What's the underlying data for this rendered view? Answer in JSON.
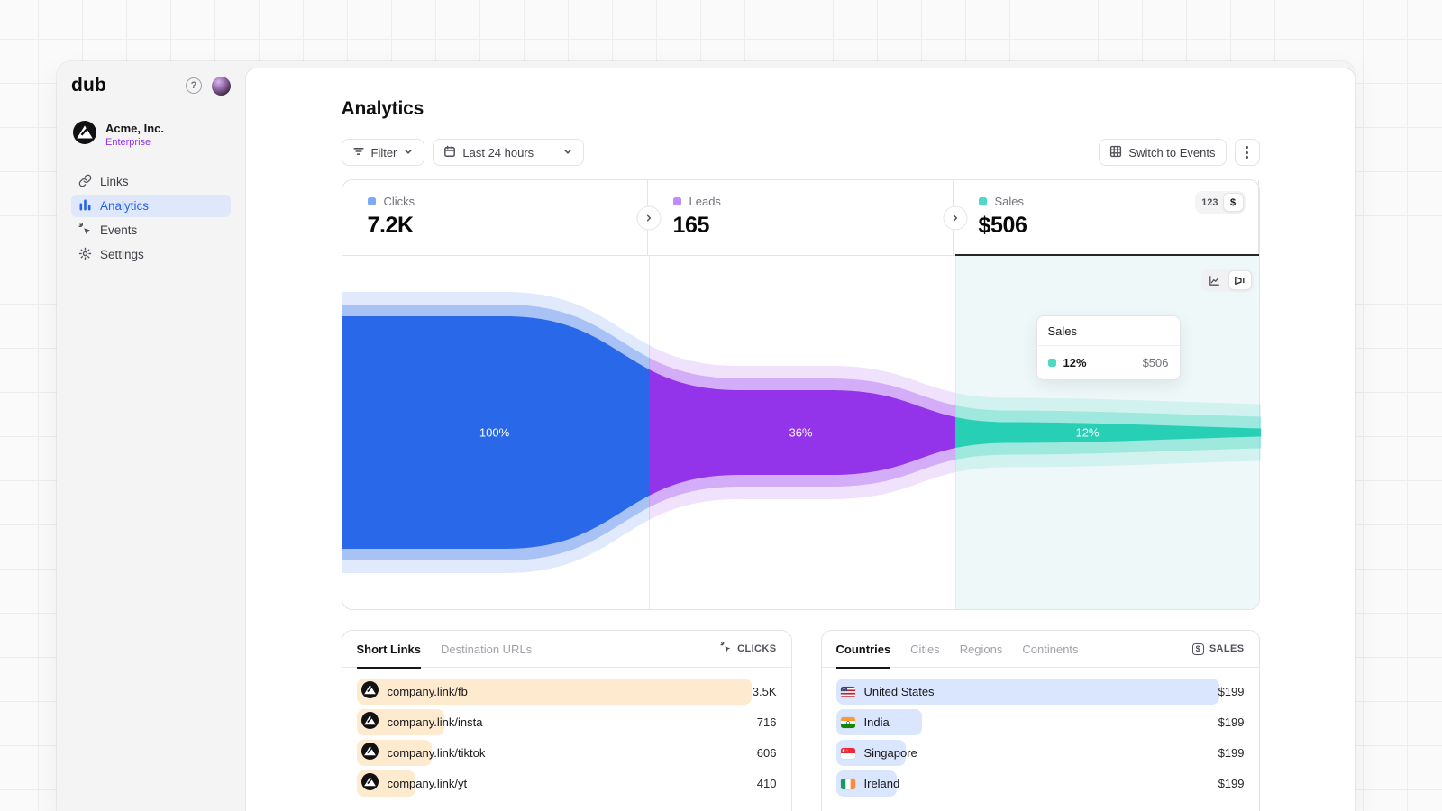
{
  "window": {
    "brand": "dub"
  },
  "sidebar": {
    "workspace": {
      "name": "Acme, Inc.",
      "plan": "Enterprise"
    },
    "nav": [
      {
        "label": "Links",
        "icon": "link-icon",
        "active": false
      },
      {
        "label": "Analytics",
        "icon": "bar-chart-icon",
        "active": true
      },
      {
        "label": "Events",
        "icon": "cursor-click-icon",
        "active": false
      },
      {
        "label": "Settings",
        "icon": "gear-icon",
        "active": false
      }
    ]
  },
  "header": {
    "title": "Analytics",
    "filter_label": "Filter",
    "date_range": "Last 24 hours",
    "switch_events_label": "Switch to Events"
  },
  "funnel": {
    "metrics": [
      {
        "label": "Clicks",
        "value": "7.2K",
        "percent": "100%",
        "color": "#7da9f8"
      },
      {
        "label": "Leads",
        "value": "165",
        "percent": "36%",
        "color": "#c18cf9"
      },
      {
        "label": "Sales",
        "value": "$506",
        "percent": "12%",
        "color": "#4fd8c4"
      }
    ],
    "unit_toggle": {
      "number": "123",
      "currency": "$"
    },
    "tooltip": {
      "title": "Sales",
      "percent": "12%",
      "value": "$506",
      "color": "#4fd8c4"
    }
  },
  "chart_data": {
    "type": "funnel",
    "stages": [
      {
        "label": "Clicks",
        "display_value": "7.2K",
        "percent": 100
      },
      {
        "label": "Leads",
        "display_value": "165",
        "percent": 36
      },
      {
        "label": "Sales",
        "display_value": "$506",
        "percent": 12
      }
    ],
    "legend_position": "header",
    "hovered_stage": "Sales"
  },
  "links_card": {
    "tabs": [
      "Short Links",
      "Destination URLs"
    ],
    "active_tab": "Short Links",
    "metric_label": "CLICKS",
    "metric_icon": "cursor-click-icon",
    "rows": [
      {
        "label": "company.link/fb",
        "value": "3.5K",
        "bar": 94
      },
      {
        "label": "company.link/insta",
        "value": "716",
        "bar": 21
      },
      {
        "label": "company.link/tiktok",
        "value": "606",
        "bar": 18
      },
      {
        "label": "company.link/yt",
        "value": "410",
        "bar": 14
      }
    ]
  },
  "geo_card": {
    "tabs": [
      "Countries",
      "Cities",
      "Regions",
      "Continents"
    ],
    "active_tab": "Countries",
    "metric_label": "SALES",
    "metric_icon": "invoice-dollar-icon",
    "rows": [
      {
        "label": "United States",
        "value": "$199",
        "flag": "us",
        "bar": 94
      },
      {
        "label": "India",
        "value": "$199",
        "flag": "in",
        "bar": 21
      },
      {
        "label": "Singapore",
        "value": "$199",
        "flag": "sg",
        "bar": 17
      },
      {
        "label": "Ireland",
        "value": "$199",
        "flag": "ie",
        "bar": 15
      }
    ]
  },
  "colors": {
    "clicks_fill": "#2968e8",
    "leads_fill": "#9333ea",
    "sales_fill": "#27cfb5",
    "links_bar": "#fdeacf",
    "geo_bar": "#d9e6fd",
    "active_nav_bg": "#dfe8fb",
    "sales_hover_bg": "#eef8f9",
    "enterprise_badge": "#9333ea"
  }
}
